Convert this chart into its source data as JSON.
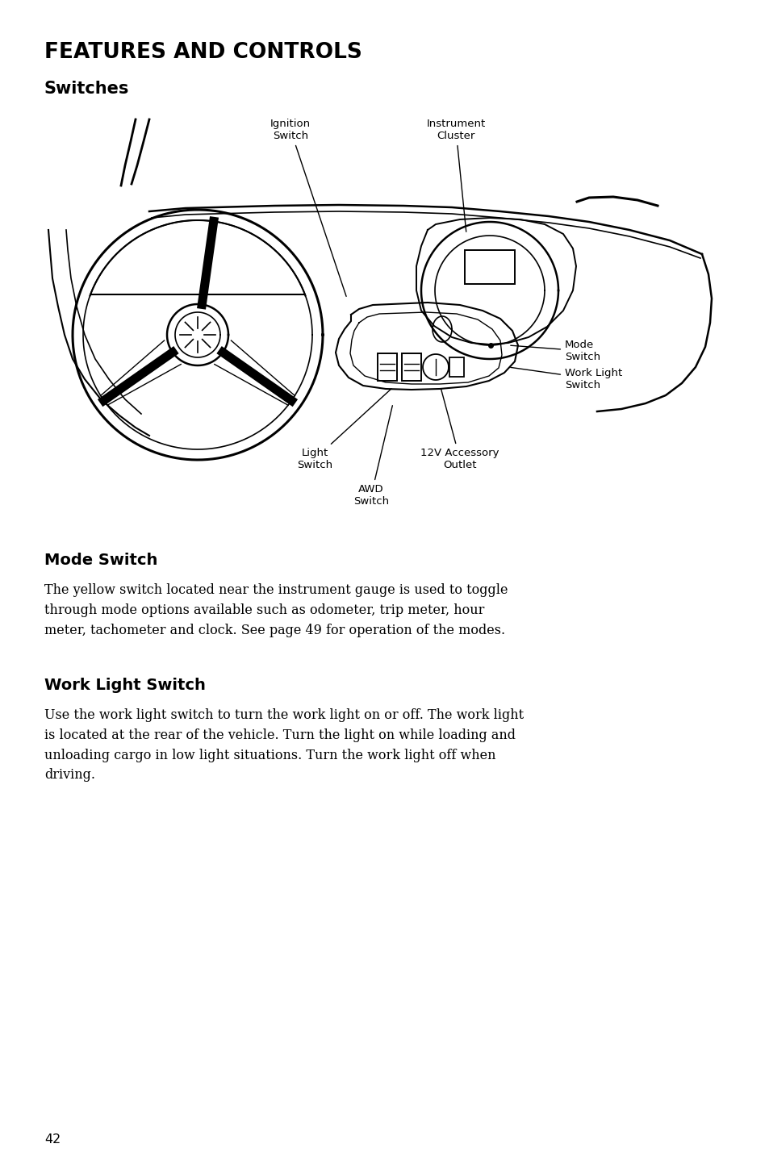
{
  "page_title": "FEATURES AND CONTROLS",
  "page_subtitle": "Switches",
  "page_number": "42",
  "background_color": "#ffffff",
  "text_color": "#000000",
  "title_fontsize": 19,
  "subtitle_fontsize": 15,
  "body_fontsize": 11.5,
  "label_fontsize": 9.5,
  "section1_title": "Mode Switch",
  "section1_text": "The yellow switch located near the instrument gauge is used to toggle\nthrough mode options available such as odometer, trip meter, hour\nmeter, tachometer and clock. See page 49 for operation of the modes.",
  "section2_title": "Work Light Switch",
  "section2_text": "Use the work light switch to turn the work light on or off. The work light\nis located at the rear of the vehicle. Turn the light on while loading and\nunloading cargo in low light situations. Turn the work light off when\ndriving."
}
